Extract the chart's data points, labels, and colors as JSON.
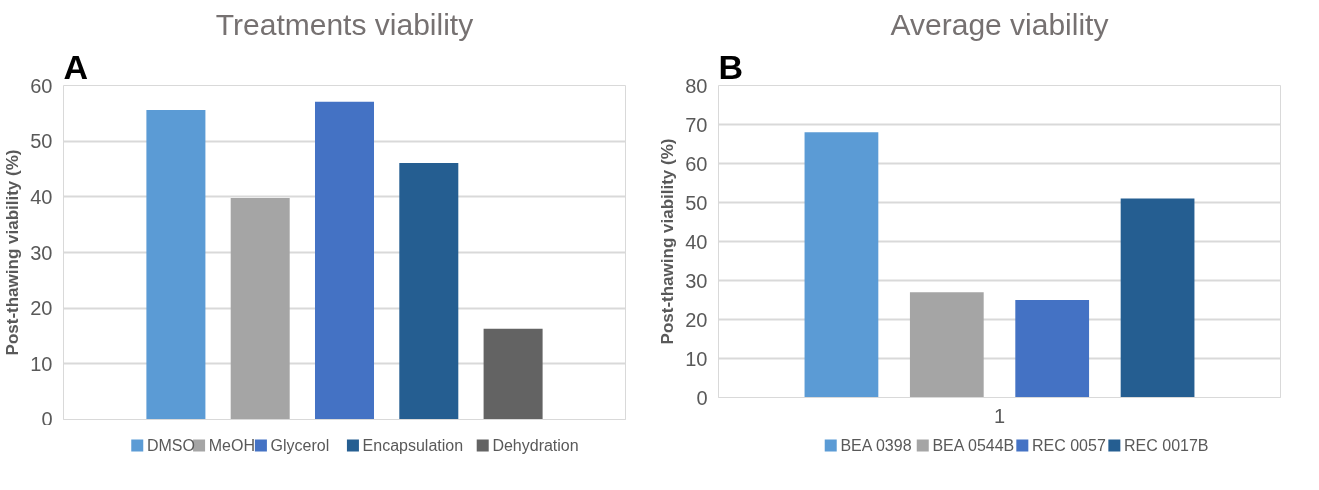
{
  "chart_data": [
    {
      "type": "bar",
      "title": "Treatments viability",
      "ylabel": "Post-thawing viability (%)",
      "annotations": [
        "A"
      ],
      "categories": [
        null
      ],
      "series": [
        {
          "name": "DMSO",
          "color": "#5b9bd5",
          "values": [
            55.6
          ]
        },
        {
          "name": "MeOH",
          "color": "#a5a5a5",
          "values": [
            39.8
          ]
        },
        {
          "name": "Glycerol",
          "color": "#4472c4",
          "values": [
            57.1
          ]
        },
        {
          "name": "Encapsulation",
          "color": "#255e91",
          "values": [
            46.1
          ]
        },
        {
          "name": "Dehydration",
          "color": "#636363",
          "values": [
            16.3
          ]
        }
      ],
      "ylim": [
        0,
        60
      ],
      "yticks": [
        0,
        10,
        20,
        30,
        40,
        50,
        60
      ],
      "grid": "y",
      "legend": "bottom"
    },
    {
      "type": "bar",
      "title": "Average viability",
      "ylabel": "Post-thawing viability (%)",
      "annotations": [
        "B"
      ],
      "categories": [
        "1"
      ],
      "series": [
        {
          "name": "BEA 0398",
          "color": "#5b9bd5",
          "values": [
            68
          ]
        },
        {
          "name": "BEA 0544B",
          "color": "#a5a5a5",
          "values": [
            27
          ]
        },
        {
          "name": "REC 0057",
          "color": "#4472c4",
          "values": [
            25
          ]
        },
        {
          "name": "REC 0017B",
          "color": "#255e91",
          "values": [
            51
          ]
        }
      ],
      "ylim": [
        0,
        80
      ],
      "yticks": [
        0,
        10,
        20,
        30,
        40,
        50,
        60,
        70,
        80
      ],
      "grid": "y",
      "legend": "bottom"
    }
  ]
}
